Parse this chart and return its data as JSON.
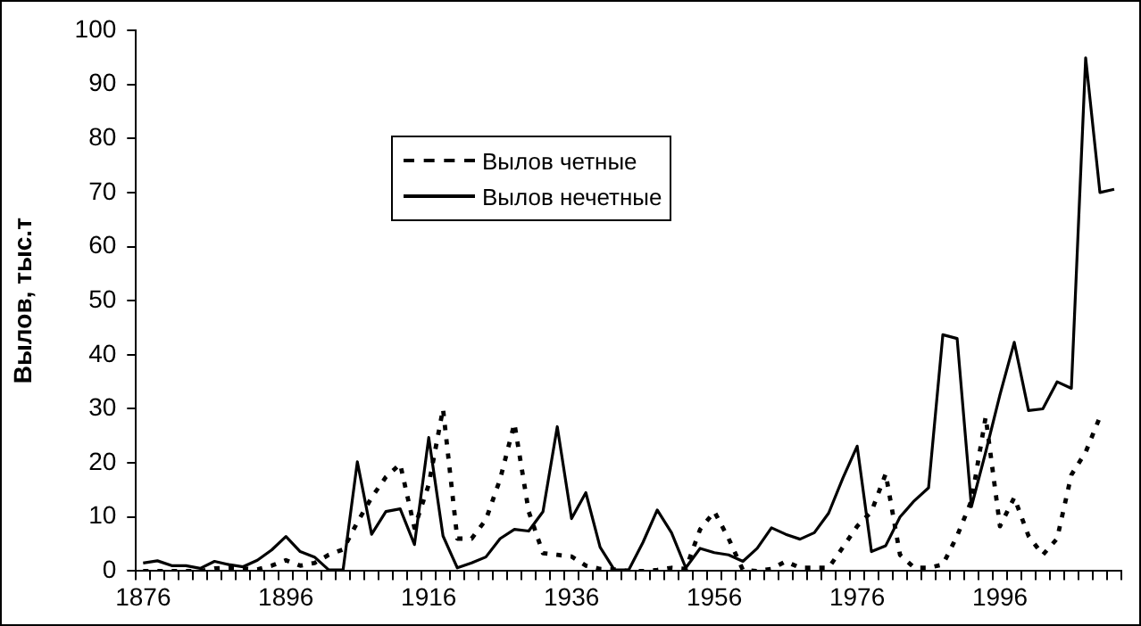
{
  "chart_data": {
    "type": "line",
    "ylabel": "Вылов, тыс.т",
    "categories": [
      "1876",
      null,
      null,
      null,
      null,
      null,
      null,
      null,
      null,
      null,
      "1896",
      null,
      null,
      null,
      null,
      null,
      null,
      null,
      null,
      null,
      "1916",
      null,
      null,
      null,
      null,
      null,
      null,
      null,
      null,
      null,
      "1936",
      null,
      null,
      null,
      null,
      null,
      null,
      null,
      null,
      null,
      "1956",
      null,
      null,
      null,
      null,
      null,
      null,
      null,
      null,
      null,
      "1976",
      null,
      null,
      null,
      null,
      null,
      null,
      null,
      null,
      null,
      "1996",
      null,
      null,
      null,
      null,
      null,
      null,
      null,
      null
    ],
    "series": [
      {
        "name": "Вылов четные",
        "color": "#000000",
        "line_style": "dotted",
        "values": [
          0,
          0,
          0,
          0,
          0,
          0.5,
          0.6,
          0.5,
          0.3,
          1,
          2,
          1,
          1.5,
          3,
          4,
          9,
          13.6,
          17.4,
          19.8,
          8,
          16,
          30,
          6,
          6,
          9.5,
          17,
          27.3,
          11,
          3.3,
          3,
          2.7,
          1,
          0.4,
          0.3,
          0,
          0,
          0.2,
          0.6,
          0.4,
          7.7,
          11,
          6,
          0.2,
          0,
          0.4,
          1.8,
          0.6,
          0.6,
          0.6,
          4.4,
          8.3,
          11,
          18,
          3,
          0.6,
          0.6,
          1.2,
          6.5,
          13,
          28.5,
          8.3,
          13.6,
          6.5,
          3,
          6,
          17.8,
          22,
          28.5,
          null
        ]
      },
      {
        "name": "Вылов нечетные",
        "color": "#000000",
        "line_style": "solid",
        "values": [
          1.5,
          1.9,
          1,
          1,
          0.5,
          1.8,
          1.2,
          0.8,
          2,
          3.9,
          6.4,
          3.6,
          2.6,
          0.2,
          0.2,
          20.2,
          6.8,
          11,
          11.5,
          4.9,
          24.7,
          6.5,
          0.6,
          1.5,
          2.6,
          6,
          7.7,
          7.4,
          11,
          26.7,
          9.7,
          14.5,
          4.4,
          0.2,
          0.2,
          5.3,
          11.3,
          7.1,
          0.6,
          4.2,
          3.4,
          3,
          1.8,
          4.2,
          8,
          6.8,
          5.9,
          7.1,
          10.7,
          17.2,
          23.1,
          3.6,
          4.7,
          10,
          13,
          15.4,
          43.7,
          43,
          11.9,
          22,
          32.6,
          42.3,
          29.7,
          30,
          35,
          33.8,
          94.9,
          70,
          70.6
        ]
      }
    ],
    "ylim": [
      0,
      100
    ],
    "yticks": [
      0,
      10,
      20,
      30,
      40,
      50,
      60,
      70,
      80,
      90,
      100
    ],
    "grid": false,
    "legend": "top left",
    "marker": "none"
  }
}
